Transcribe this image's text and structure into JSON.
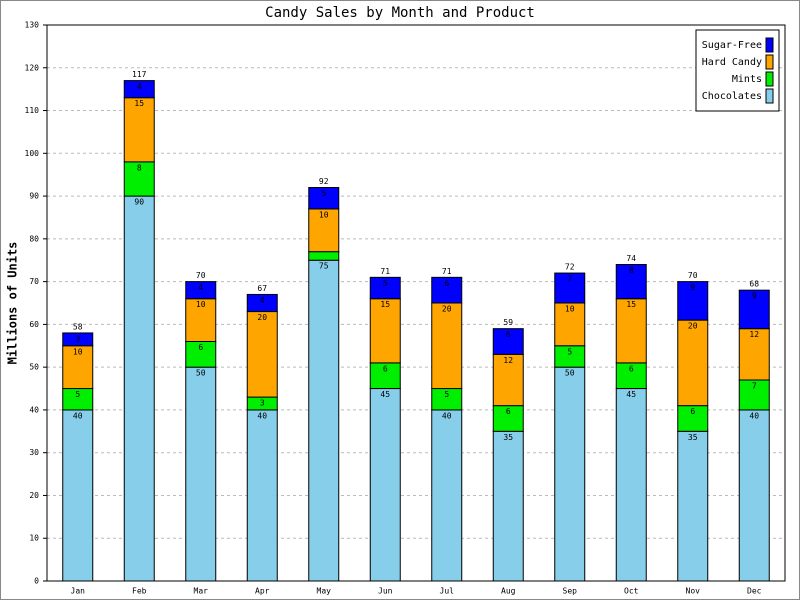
{
  "chart_data": {
    "type": "stacked_bar",
    "title": "Candy Sales by Month and Product",
    "y_label": "Millions of Units",
    "categories": [
      "Jan",
      "Feb",
      "Mar",
      "Apr",
      "May",
      "Jun",
      "Jul",
      "Aug",
      "Sep",
      "Oct",
      "Nov",
      "Dec"
    ],
    "series": [
      {
        "name": "Chocolates",
        "color": "#87ceeb",
        "values": [
          40,
          90,
          50,
          40,
          75,
          45,
          40,
          35,
          50,
          45,
          35,
          40
        ]
      },
      {
        "name": "Mints",
        "color": "#00ee00",
        "values": [
          5,
          8,
          6,
          3,
          2,
          6,
          5,
          6,
          5,
          6,
          6,
          7
        ]
      },
      {
        "name": "Hard Candy",
        "color": "#ffa500",
        "values": [
          10,
          15,
          10,
          20,
          10,
          15,
          20,
          12,
          10,
          15,
          20,
          12
        ]
      },
      {
        "name": "Sugar-Free",
        "color": "#0000ff",
        "values": [
          3,
          4,
          4,
          4,
          5,
          5,
          6,
          6,
          7,
          8,
          9,
          9
        ]
      }
    ],
    "totals": [
      58,
      117,
      70,
      67,
      92,
      71,
      71,
      59,
      72,
      74,
      70,
      68
    ],
    "ylim": [
      0,
      130
    ],
    "yticks": [
      0,
      10,
      20,
      30,
      40,
      50,
      60,
      70,
      80,
      90,
      100,
      110,
      120,
      130
    ],
    "grid": true,
    "legend": "top-right"
  }
}
